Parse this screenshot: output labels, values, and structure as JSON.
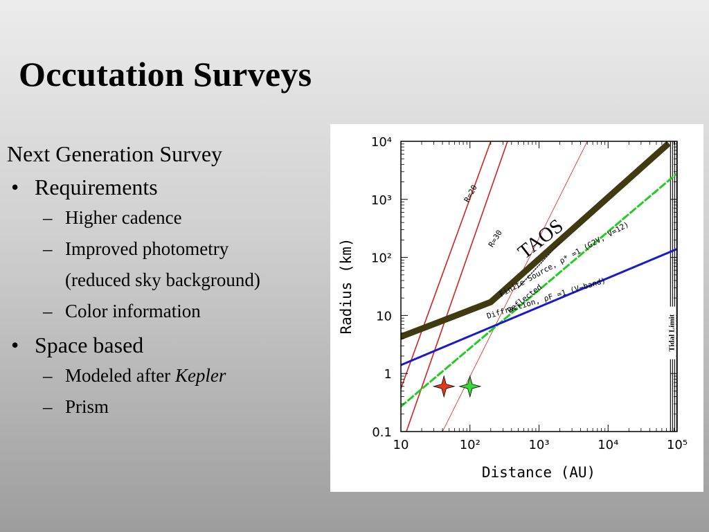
{
  "slide": {
    "title": "Occutation Surveys",
    "lead": "Next Generation Survey",
    "bullets": [
      {
        "text": "Requirements",
        "subs": [
          "Higher cadence",
          "Improved photometry",
          "(reduced sky background)",
          "Color information"
        ]
      },
      {
        "text": "Space based",
        "subs": [
          "Modeled after ",
          "Prism"
        ],
        "sub_emphasis": "Kepler"
      }
    ],
    "bullet_glyph": "•",
    "dash_glyph": "–"
  },
  "chart_data": {
    "type": "line",
    "xlabel": "Distance (AU)",
    "ylabel": "Radius (km)",
    "xscale": "log",
    "yscale": "log",
    "xlim": [
      10,
      100000
    ],
    "ylim": [
      0.1,
      10000
    ],
    "x_ticks": [
      {
        "value": 10,
        "label": "10"
      },
      {
        "value": 100,
        "label": "10²"
      },
      {
        "value": 1000,
        "label": "10³"
      },
      {
        "value": 10000,
        "label": "10⁴"
      },
      {
        "value": 100000,
        "label": "10⁵"
      }
    ],
    "y_ticks": [
      {
        "value": 0.1,
        "label": "0.1"
      },
      {
        "value": 1,
        "label": "1"
      },
      {
        "value": 10,
        "label": "10"
      },
      {
        "value": 100,
        "label": "10²"
      },
      {
        "value": 1000,
        "label": "10³"
      },
      {
        "value": 10000,
        "label": "10⁴"
      }
    ],
    "series": [
      {
        "name": "R=20",
        "style": "solid",
        "color": "#d42020",
        "width": 1.6,
        "points": [
          [
            10,
            0.55
          ],
          [
            200,
            10000
          ]
        ]
      },
      {
        "name": "R=30",
        "style": "solid",
        "color": "#d42020",
        "width": 1.6,
        "points": [
          [
            12,
            0.1
          ],
          [
            350,
            10000
          ]
        ]
      },
      {
        "name": "",
        "style": "solid",
        "color": "#d42020",
        "width": 0.8,
        "points": [
          [
            40,
            0.1
          ],
          [
            5000,
            10000
          ]
        ]
      },
      {
        "name": "TAOS",
        "style": "solid",
        "color": "#3f3a10",
        "width": 9,
        "points": [
          [
            10,
            4.3
          ],
          [
            200,
            17
          ],
          [
            70000,
            8500
          ]
        ]
      },
      {
        "name": "Finite Source, ρ*=1 (G2V, V=12)",
        "style": "dashed",
        "color": "#22cc22",
        "width": 3,
        "points": [
          [
            10,
            0.27
          ],
          [
            100000,
            2800
          ]
        ]
      },
      {
        "name": "Diffraction, ρF=1 (V-band)",
        "style": "dotted",
        "color": "#1a1acc",
        "width": 3,
        "points": [
          [
            10,
            1.4
          ],
          [
            100000,
            140
          ]
        ]
      },
      {
        "name": "",
        "style": "dotted",
        "color": "#222222",
        "width": 1.5,
        "points": [
          [
            500,
            30
          ],
          [
            2000,
            180
          ]
        ]
      }
    ],
    "reference_stars": [
      {
        "x": 42,
        "y": 0.6,
        "color": "#e43a1a"
      },
      {
        "x": 100,
        "y": 0.6,
        "color": "#33dd33"
      }
    ],
    "scatter_points": [],
    "annotations": [
      {
        "text": "R=20",
        "x": 110,
        "y": 1200,
        "angle": -62,
        "kind": "small"
      },
      {
        "text": "R=30",
        "x": 250,
        "y": 200,
        "angle": -58,
        "kind": "small"
      },
      {
        "text": "TAOS",
        "x": 1200,
        "y": 170,
        "angle": -38,
        "kind": "big"
      },
      {
        "text": "Reflected",
        "x": 650,
        "y": 18,
        "angle": -38,
        "kind": "small"
      },
      {
        "text": "Finite Source, ρ* =1 (G2V, V=12)",
        "x": 2400,
        "y": 85,
        "angle": -29,
        "kind": "small"
      },
      {
        "text": "Diffraction, ρF =1 (V−band)",
        "x": 1300,
        "y": 18,
        "angle": -17,
        "kind": "small"
      },
      {
        "text": "Tidal Limit",
        "x": 90000,
        "y": 5,
        "angle": -90,
        "kind": "tidal"
      }
    ],
    "tidal_limit_x": 80000,
    "grid": false,
    "legend": "none"
  }
}
